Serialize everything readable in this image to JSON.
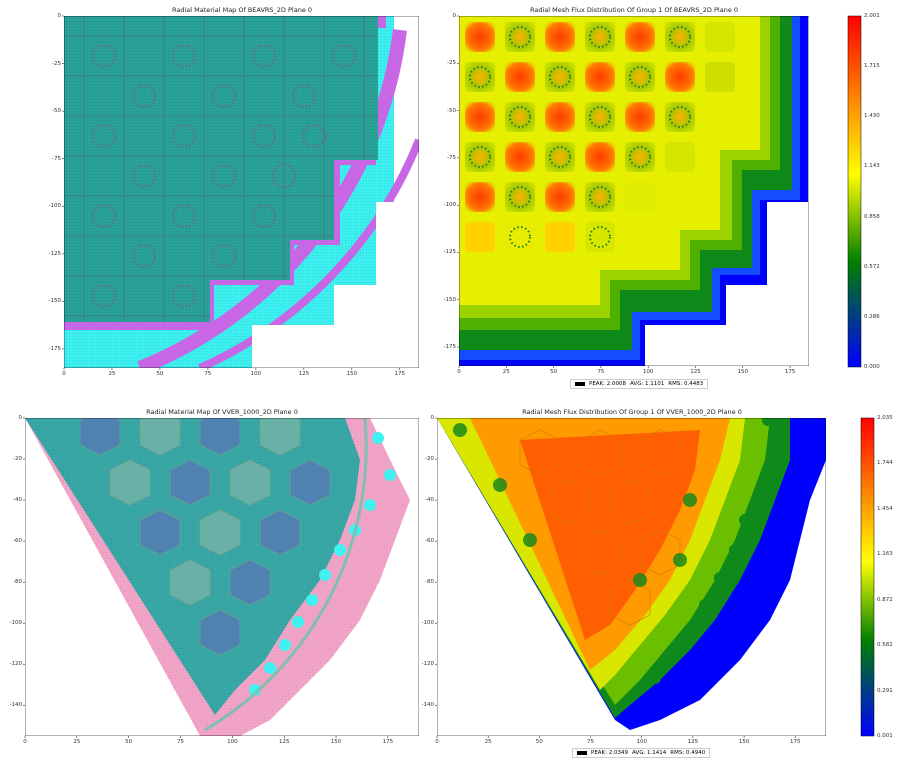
{
  "chart_data": [
    {
      "type": "heatmap",
      "title": "Radial Material Map Of BEAVRS_2D Plane 0",
      "x_ticks": [
        "0",
        "25",
        "50",
        "75",
        "100",
        "125",
        "150",
        "175"
      ],
      "y_ticks": [
        "0",
        "-25",
        "-50",
        "-75",
        "-100",
        "-125",
        "-150",
        "-175"
      ],
      "xlim": [
        0,
        185
      ],
      "ylim": [
        -185,
        0
      ],
      "colors": {
        "fuel": "#2aa39a",
        "reflector": "#3ff1f1",
        "baffle": "#c867e6",
        "water": "#ffffff"
      }
    },
    {
      "type": "heatmap",
      "title": "Radial Mesh Flux Distribution Of Group 1 Of BEAVRS_2D Plane 0",
      "x_ticks": [
        "0",
        "25",
        "50",
        "75",
        "100",
        "125",
        "150",
        "175"
      ],
      "y_ticks": [
        "0",
        "-25",
        "-50",
        "-75",
        "-100",
        "-125",
        "-150",
        "-175"
      ],
      "xlim": [
        0,
        185
      ],
      "ylim": [
        -185,
        0
      ],
      "colorbar": {
        "min": 0.0,
        "max": 2.001,
        "ticks": [
          "2.001",
          "1.715",
          "1.430",
          "1.143",
          "0.858",
          "0.572",
          "0.286",
          "0.000"
        ]
      },
      "legend": {
        "peak": "PEAK: 2.0008",
        "avg": "AVG: 1.1101",
        "rms": "RMS: 0.4483"
      }
    },
    {
      "type": "heatmap",
      "title": "Radial Material Map Of VVER_1000_2D Plane 0",
      "x_ticks": [
        "0",
        "25",
        "50",
        "75",
        "100",
        "125",
        "150",
        "175"
      ],
      "y_ticks": [
        "0",
        "-20",
        "-40",
        "-60",
        "-80",
        "-100",
        "-120",
        "-140"
      ],
      "xlim": [
        0,
        190
      ],
      "ylim": [
        -155,
        0
      ],
      "colors": {
        "fuel": "#3aa8a6",
        "fuel_dark": "#5b74b8",
        "reflector": "#f1a6c8",
        "hole": "#3ff1f1"
      }
    },
    {
      "type": "heatmap",
      "title": "Radial Mesh Flux Distribution Of Group 1 Of VVER_1000_2D Plane 0",
      "x_ticks": [
        "0",
        "25",
        "50",
        "75",
        "100",
        "125",
        "150",
        "175"
      ],
      "y_ticks": [
        "0",
        "-20",
        "-40",
        "-60",
        "-80",
        "-100",
        "-120",
        "-140"
      ],
      "xlim": [
        0,
        190
      ],
      "ylim": [
        -155,
        0
      ],
      "colorbar": {
        "min": 0.001,
        "max": 2.035,
        "ticks": [
          "2.035",
          "1.744",
          "1.454",
          "1.163",
          "0.872",
          "0.582",
          "0.291",
          "0.001"
        ]
      },
      "legend": {
        "peak": "PEAK: 2.0349",
        "avg": "AVG: 1.1414",
        "rms": "RMS: 0.4940"
      }
    }
  ]
}
